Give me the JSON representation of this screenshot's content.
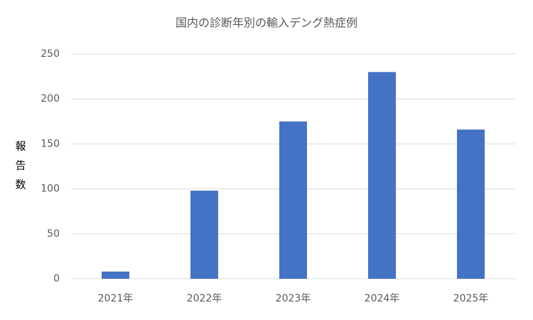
{
  "chart_data": {
    "type": "bar",
    "title": "国内の診断年別の輸入デング熱症例",
    "y_label": "報告数",
    "categories": [
      "2021年",
      "2022年",
      "2023年",
      "2024年",
      "2025年"
    ],
    "values": [
      8,
      98,
      175,
      230,
      166
    ],
    "color": "#4472c4",
    "ylim": [
      0,
      250
    ],
    "yticks": [
      0,
      50,
      100,
      150,
      200,
      250
    ],
    "grid": true
  }
}
